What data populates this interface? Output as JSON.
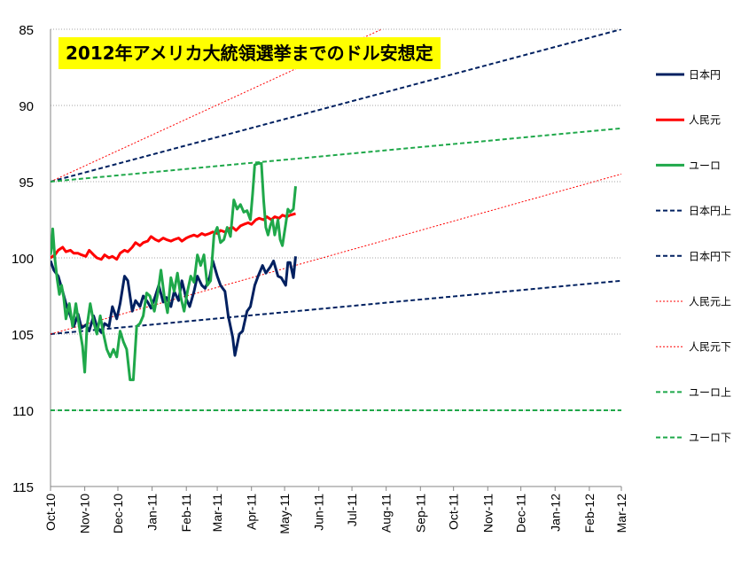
{
  "chart_data": {
    "type": "line",
    "title": "2012年アメリカ大統領選挙までのドル安想定",
    "y_axis": {
      "min": 85,
      "max": 115,
      "reversed": true,
      "ticks": [
        85,
        90,
        95,
        100,
        105,
        110,
        115
      ],
      "gridlines": true
    },
    "x_axis": {
      "start": "2010-10-01",
      "end": "2012-03-01",
      "tick_labels": [
        "Oct-10",
        "Nov-10",
        "Dec-10",
        "Jan-11",
        "Feb-11",
        "Mar-11",
        "Apr-11",
        "May-11",
        "Jun-11",
        "Jul-11",
        "Aug-11",
        "Sep-11",
        "Oct-11",
        "Nov-11",
        "Dec-11",
        "Jan-12",
        "Feb-12",
        "Mar-12"
      ],
      "tick_dates": [
        "2010-10-01",
        "2010-11-01",
        "2010-12-01",
        "2011-01-01",
        "2011-02-01",
        "2011-03-01",
        "2011-04-01",
        "2011-05-01",
        "2011-06-01",
        "2011-07-01",
        "2011-08-01",
        "2011-09-01",
        "2011-10-01",
        "2011-11-01",
        "2011-12-01",
        "2012-01-01",
        "2012-02-01",
        "2012-03-01"
      ],
      "label_rotation": "vertical"
    },
    "legend_position": "right",
    "series": [
      {
        "name": "日本円",
        "color": "#002060",
        "style": "solid",
        "points": [
          [
            "2010-10-01",
            100.2
          ],
          [
            "2010-10-04",
            100.8
          ],
          [
            "2010-10-08",
            101.2
          ],
          [
            "2010-10-12",
            102.2
          ],
          [
            "2010-10-15",
            103.0
          ],
          [
            "2010-10-19",
            103.8
          ],
          [
            "2010-10-22",
            104.5
          ],
          [
            "2010-10-26",
            103.7
          ],
          [
            "2010-10-29",
            104.6
          ],
          [
            "2010-11-02",
            104.4
          ],
          [
            "2010-11-05",
            104.8
          ],
          [
            "2010-11-09",
            103.8
          ],
          [
            "2010-11-12",
            104.5
          ],
          [
            "2010-11-16",
            104.9
          ],
          [
            "2010-11-19",
            104.3
          ],
          [
            "2010-11-23",
            104.5
          ],
          [
            "2010-11-26",
            103.2
          ],
          [
            "2010-11-30",
            104.0
          ],
          [
            "2010-12-03",
            103.0
          ],
          [
            "2010-12-07",
            101.2
          ],
          [
            "2010-12-10",
            101.5
          ],
          [
            "2010-12-14",
            103.5
          ],
          [
            "2010-12-17",
            102.8
          ],
          [
            "2010-12-21",
            103.2
          ],
          [
            "2010-12-24",
            102.5
          ],
          [
            "2010-12-28",
            102.9
          ],
          [
            "2010-12-31",
            103.3
          ],
          [
            "2011-01-04",
            102.5
          ],
          [
            "2011-01-07",
            101.8
          ],
          [
            "2011-01-11",
            102.9
          ],
          [
            "2011-01-14",
            102.6
          ],
          [
            "2011-01-18",
            103.2
          ],
          [
            "2011-01-21",
            102.2
          ],
          [
            "2011-01-25",
            102.8
          ],
          [
            "2011-01-28",
            101.5
          ],
          [
            "2011-02-01",
            102.7
          ],
          [
            "2011-02-04",
            103.2
          ],
          [
            "2011-02-08",
            102.2
          ],
          [
            "2011-02-11",
            101.2
          ],
          [
            "2011-02-15",
            101.8
          ],
          [
            "2011-02-18",
            102.0
          ],
          [
            "2011-02-22",
            101.3
          ],
          [
            "2011-02-25",
            100.2
          ],
          [
            "2011-03-01",
            101.2
          ],
          [
            "2011-03-04",
            101.8
          ],
          [
            "2011-03-08",
            102.2
          ],
          [
            "2011-03-11",
            103.8
          ],
          [
            "2011-03-15",
            105.2
          ],
          [
            "2011-03-17",
            106.4
          ],
          [
            "2011-03-21",
            105.0
          ],
          [
            "2011-03-24",
            104.8
          ],
          [
            "2011-03-28",
            103.5
          ],
          [
            "2011-03-31",
            103.2
          ],
          [
            "2011-04-04",
            101.8
          ],
          [
            "2011-04-07",
            101.2
          ],
          [
            "2011-04-11",
            100.5
          ],
          [
            "2011-04-14",
            101.0
          ],
          [
            "2011-04-18",
            100.6
          ],
          [
            "2011-04-21",
            100.2
          ],
          [
            "2011-04-25",
            101.2
          ],
          [
            "2011-04-28",
            101.3
          ],
          [
            "2011-05-02",
            101.8
          ],
          [
            "2011-05-04",
            100.3
          ],
          [
            "2011-05-06",
            100.3
          ],
          [
            "2011-05-09",
            101.3
          ],
          [
            "2011-05-11",
            99.9
          ]
        ]
      },
      {
        "name": "人民元",
        "color": "#ff0000",
        "style": "solid",
        "points": [
          [
            "2010-10-01",
            100.0
          ],
          [
            "2010-10-05",
            99.8
          ],
          [
            "2010-10-08",
            99.5
          ],
          [
            "2010-10-12",
            99.3
          ],
          [
            "2010-10-15",
            99.6
          ],
          [
            "2010-10-19",
            99.5
          ],
          [
            "2010-10-22",
            99.7
          ],
          [
            "2010-10-26",
            99.7
          ],
          [
            "2010-10-29",
            99.8
          ],
          [
            "2010-11-02",
            99.9
          ],
          [
            "2010-11-05",
            99.5
          ],
          [
            "2010-11-09",
            99.8
          ],
          [
            "2010-11-12",
            100.0
          ],
          [
            "2010-11-16",
            100.1
          ],
          [
            "2010-11-19",
            99.8
          ],
          [
            "2010-11-23",
            100.0
          ],
          [
            "2010-11-26",
            99.9
          ],
          [
            "2010-11-30",
            100.1
          ],
          [
            "2010-12-03",
            99.7
          ],
          [
            "2010-12-07",
            99.5
          ],
          [
            "2010-12-10",
            99.6
          ],
          [
            "2010-12-14",
            99.3
          ],
          [
            "2010-12-17",
            99.0
          ],
          [
            "2010-12-21",
            99.2
          ],
          [
            "2010-12-24",
            99.0
          ],
          [
            "2010-12-28",
            98.9
          ],
          [
            "2010-12-31",
            98.6
          ],
          [
            "2011-01-04",
            98.8
          ],
          [
            "2011-01-07",
            98.9
          ],
          [
            "2011-01-11",
            98.7
          ],
          [
            "2011-01-14",
            98.8
          ],
          [
            "2011-01-18",
            98.9
          ],
          [
            "2011-01-21",
            98.8
          ],
          [
            "2011-01-25",
            98.7
          ],
          [
            "2011-01-28",
            98.9
          ],
          [
            "2011-02-01",
            98.7
          ],
          [
            "2011-02-04",
            98.6
          ],
          [
            "2011-02-08",
            98.5
          ],
          [
            "2011-02-11",
            98.6
          ],
          [
            "2011-02-15",
            98.4
          ],
          [
            "2011-02-18",
            98.5
          ],
          [
            "2011-02-22",
            98.4
          ],
          [
            "2011-02-25",
            98.3
          ],
          [
            "2011-03-01",
            98.4
          ],
          [
            "2011-03-04",
            98.2
          ],
          [
            "2011-03-08",
            98.3
          ],
          [
            "2011-03-11",
            98.1
          ],
          [
            "2011-03-15",
            98.0
          ],
          [
            "2011-03-18",
            98.2
          ],
          [
            "2011-03-22",
            97.9
          ],
          [
            "2011-03-25",
            97.8
          ],
          [
            "2011-03-29",
            97.7
          ],
          [
            "2011-04-01",
            97.8
          ],
          [
            "2011-04-05",
            97.5
          ],
          [
            "2011-04-08",
            97.4
          ],
          [
            "2011-04-12",
            97.5
          ],
          [
            "2011-04-15",
            97.3
          ],
          [
            "2011-04-19",
            97.5
          ],
          [
            "2011-04-22",
            97.3
          ],
          [
            "2011-04-26",
            97.4
          ],
          [
            "2011-04-29",
            97.2
          ],
          [
            "2011-05-03",
            97.3
          ],
          [
            "2011-05-06",
            97.2
          ],
          [
            "2011-05-11",
            97.1
          ]
        ]
      },
      {
        "name": "ユーロ",
        "color": "#1fa84a",
        "style": "solid",
        "points": [
          [
            "2010-10-01",
            99.8
          ],
          [
            "2010-10-02",
            99.3
          ],
          [
            "2010-10-03",
            98.1
          ],
          [
            "2010-10-05",
            100.1
          ],
          [
            "2010-10-07",
            101.4
          ],
          [
            "2010-10-09",
            102.4
          ],
          [
            "2010-10-11",
            101.8
          ],
          [
            "2010-10-13",
            102.6
          ],
          [
            "2010-10-15",
            104.0
          ],
          [
            "2010-10-18",
            103.0
          ],
          [
            "2010-10-21",
            104.5
          ],
          [
            "2010-10-24",
            103.0
          ],
          [
            "2010-10-27",
            104.5
          ],
          [
            "2010-10-30",
            105.8
          ],
          [
            "2010-11-01",
            107.5
          ],
          [
            "2010-11-03",
            104.5
          ],
          [
            "2010-11-06",
            103.0
          ],
          [
            "2010-11-09",
            104.2
          ],
          [
            "2010-11-12",
            105.0
          ],
          [
            "2010-11-15",
            103.8
          ],
          [
            "2010-11-18",
            105.0
          ],
          [
            "2010-11-21",
            106.0
          ],
          [
            "2010-11-24",
            106.5
          ],
          [
            "2010-11-27",
            106.0
          ],
          [
            "2010-11-30",
            106.5
          ],
          [
            "2010-12-03",
            104.8
          ],
          [
            "2010-12-06",
            105.5
          ],
          [
            "2010-12-09",
            106.0
          ],
          [
            "2010-12-12",
            108.0
          ],
          [
            "2010-12-15",
            108.0
          ],
          [
            "2010-12-18",
            104.5
          ],
          [
            "2010-12-21",
            104.3
          ],
          [
            "2010-12-24",
            103.8
          ],
          [
            "2010-12-27",
            102.3
          ],
          [
            "2010-12-30",
            102.5
          ],
          [
            "2011-01-03",
            103.5
          ],
          [
            "2011-01-06",
            102.4
          ],
          [
            "2011-01-09",
            100.8
          ],
          [
            "2011-01-12",
            102.5
          ],
          [
            "2011-01-15",
            103.6
          ],
          [
            "2011-01-18",
            101.3
          ],
          [
            "2011-01-21",
            102.2
          ],
          [
            "2011-01-24",
            101.0
          ],
          [
            "2011-01-27",
            102.6
          ],
          [
            "2011-01-30",
            103.5
          ],
          [
            "2011-02-02",
            102.2
          ],
          [
            "2011-02-05",
            101.2
          ],
          [
            "2011-02-08",
            101.6
          ],
          [
            "2011-02-11",
            99.8
          ],
          [
            "2011-02-14",
            100.5
          ],
          [
            "2011-02-17",
            99.8
          ],
          [
            "2011-02-20",
            101.8
          ],
          [
            "2011-02-23",
            101.5
          ],
          [
            "2011-02-26",
            98.5
          ],
          [
            "2011-03-01",
            98.0
          ],
          [
            "2011-03-04",
            99.0
          ],
          [
            "2011-03-07",
            98.8
          ],
          [
            "2011-03-10",
            98.0
          ],
          [
            "2011-03-13",
            98.6
          ],
          [
            "2011-03-16",
            96.2
          ],
          [
            "2011-03-19",
            96.8
          ],
          [
            "2011-03-22",
            96.5
          ],
          [
            "2011-03-25",
            97.0
          ],
          [
            "2011-03-28",
            96.9
          ],
          [
            "2011-03-31",
            97.5
          ],
          [
            "2011-04-02",
            95.8
          ],
          [
            "2011-04-04",
            93.9
          ],
          [
            "2011-04-07",
            93.8
          ],
          [
            "2011-04-10",
            93.8
          ],
          [
            "2011-04-12",
            96.2
          ],
          [
            "2011-04-14",
            98.0
          ],
          [
            "2011-04-16",
            98.5
          ],
          [
            "2011-04-18",
            97.9
          ],
          [
            "2011-04-20",
            97.5
          ],
          [
            "2011-04-22",
            98.5
          ],
          [
            "2011-04-25",
            97.5
          ],
          [
            "2011-04-27",
            98.8
          ],
          [
            "2011-04-29",
            99.2
          ],
          [
            "2011-05-02",
            97.8
          ],
          [
            "2011-05-04",
            96.8
          ],
          [
            "2011-05-06",
            97.0
          ],
          [
            "2011-05-09",
            96.8
          ],
          [
            "2011-05-11",
            95.3
          ]
        ]
      },
      {
        "name": "日本円上",
        "color": "#002060",
        "style": "dashed",
        "points": [
          [
            "2010-10-01",
            95.0
          ],
          [
            "2012-03-01",
            85.0
          ]
        ]
      },
      {
        "name": "日本円下",
        "color": "#002060",
        "style": "dashed",
        "points": [
          [
            "2010-10-01",
            105.0
          ],
          [
            "2012-03-01",
            101.5
          ]
        ]
      },
      {
        "name": "人民元上",
        "color": "#ff0000",
        "style": "dotted",
        "points": [
          [
            "2010-10-01",
            95.0
          ],
          [
            "2011-07-28",
            85.0
          ]
        ]
      },
      {
        "name": "人民元下",
        "color": "#ff0000",
        "style": "dotted",
        "points": [
          [
            "2010-10-01",
            105.0
          ],
          [
            "2012-03-01",
            94.5
          ]
        ]
      },
      {
        "name": "ユーロ上",
        "color": "#1fa84a",
        "style": "dashed",
        "points": [
          [
            "2010-10-01",
            95.0
          ],
          [
            "2012-03-01",
            91.5
          ]
        ]
      },
      {
        "name": "ユーロ下",
        "color": "#1fa84a",
        "style": "dashed",
        "points": [
          [
            "2010-10-01",
            110.0
          ],
          [
            "2012-03-01",
            110.0
          ]
        ]
      }
    ]
  }
}
